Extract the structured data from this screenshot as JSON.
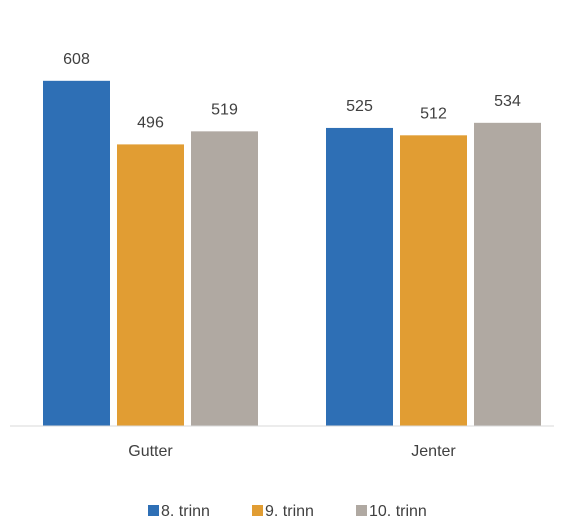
{
  "chart_data": {
    "type": "bar",
    "categories": [
      "Gutter",
      "Jenter"
    ],
    "series": [
      {
        "name": "8. trinn",
        "color": "#2e6fb5",
        "values": [
          608,
          525
        ]
      },
      {
        "name": "9. trinn",
        "color": "#e19d33",
        "values": [
          496,
          512
        ]
      },
      {
        "name": "10. trinn",
        "color": "#b0a9a2",
        "values": [
          519,
          534
        ]
      }
    ],
    "title": "",
    "xlabel": "",
    "ylabel": "",
    "ylim": [
      0,
      620
    ],
    "grid": false,
    "legend_position": "bottom",
    "data_labels": true
  }
}
